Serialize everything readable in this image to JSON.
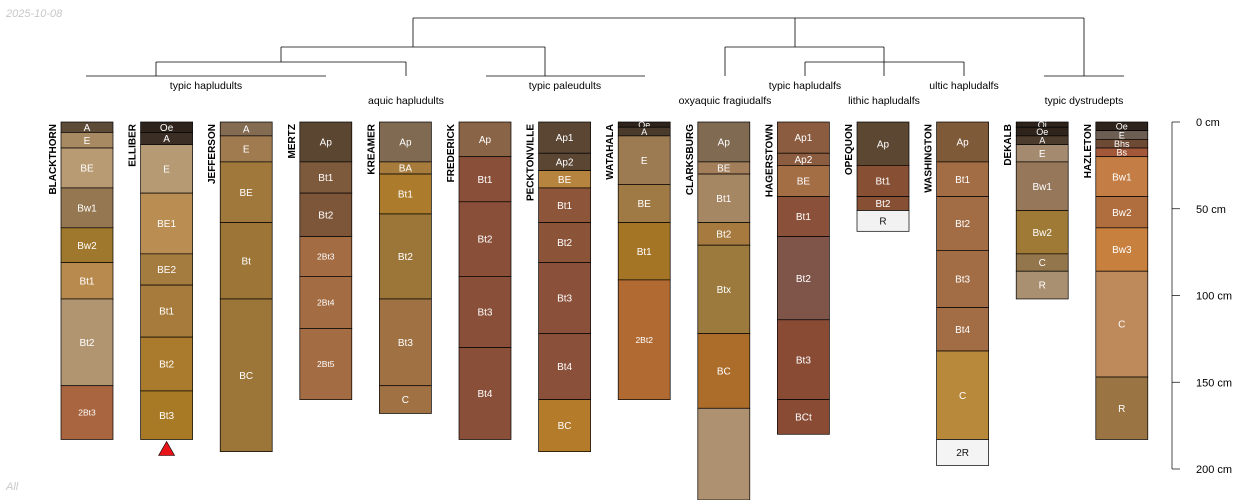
{
  "date": "2025-10-08",
  "subset": "All",
  "depth_axis": {
    "unit": "cm",
    "ticks": [
      {
        "value": 0,
        "label": "0 cm"
      },
      {
        "value": 50,
        "label": "50 cm"
      },
      {
        "value": 100,
        "label": "100 cm"
      },
      {
        "value": 150,
        "label": "150 cm"
      },
      {
        "value": 200,
        "label": "200 cm"
      }
    ]
  },
  "taxa": [
    "typic hapludults",
    "aquic hapludults",
    "typic paleudults",
    "oxyaquic fragiudalfs",
    "typic hapludalfs",
    "lithic hapludalfs",
    "ultic hapludalfs",
    "typic dystrudepts"
  ],
  "profiles": [
    {
      "name": "BLACKTHORN",
      "horizons": [
        {
          "name": "A",
          "top": 0,
          "bottom": 6,
          "color": "#5e4b37"
        },
        {
          "name": "E",
          "top": 6,
          "bottom": 15,
          "color": "#a88a62"
        },
        {
          "name": "BE",
          "top": 15,
          "bottom": 38,
          "color": "#b89b72"
        },
        {
          "name": "Bw1",
          "top": 38,
          "bottom": 61,
          "color": "#957752"
        },
        {
          "name": "Bw2",
          "top": 61,
          "bottom": 81,
          "color": "#a0782d"
        },
        {
          "name": "Bt1",
          "top": 81,
          "bottom": 102,
          "color": "#b98a4e"
        },
        {
          "name": "Bt2",
          "top": 102,
          "bottom": 152,
          "color": "#b09570"
        },
        {
          "name": "2Bt3",
          "top": 152,
          "bottom": 183,
          "color": "#a8653f"
        }
      ]
    },
    {
      "name": "ELLIBER",
      "marker": "red-triangle",
      "horizons": [
        {
          "name": "Oe",
          "top": 0,
          "bottom": 6,
          "color": "#2e241b"
        },
        {
          "name": "A",
          "top": 6,
          "bottom": 13,
          "color": "#3b2f25"
        },
        {
          "name": "E",
          "top": 13,
          "bottom": 41,
          "color": "#b69a74"
        },
        {
          "name": "BE1",
          "top": 41,
          "bottom": 76,
          "color": "#ba8d53"
        },
        {
          "name": "BE2",
          "top": 76,
          "bottom": 94,
          "color": "#a57c3f"
        },
        {
          "name": "Bt1",
          "top": 94,
          "bottom": 124,
          "color": "#a77b3b"
        },
        {
          "name": "Bt2",
          "top": 124,
          "bottom": 155,
          "color": "#aa7b2d"
        },
        {
          "name": "Bt3",
          "top": 155,
          "bottom": 183,
          "color": "#a87a26"
        }
      ]
    },
    {
      "name": "JEFFERSON",
      "horizons": [
        {
          "name": "A",
          "top": 0,
          "bottom": 8,
          "color": "#846c53"
        },
        {
          "name": "E",
          "top": 8,
          "bottom": 23,
          "color": "#a07b50"
        },
        {
          "name": "BE",
          "top": 23,
          "bottom": 58,
          "color": "#a0783c"
        },
        {
          "name": "Bt",
          "top": 58,
          "bottom": 102,
          "color": "#9c7537"
        },
        {
          "name": "BC",
          "top": 102,
          "bottom": 190,
          "color": "#9c7538"
        }
      ]
    },
    {
      "name": "MERTZ",
      "horizons": [
        {
          "name": "Ap",
          "top": 0,
          "bottom": 23,
          "color": "#5b4631"
        },
        {
          "name": "Bt1",
          "top": 23,
          "bottom": 41,
          "color": "#7e5a3c"
        },
        {
          "name": "Bt2",
          "top": 41,
          "bottom": 66,
          "color": "#7d5538"
        },
        {
          "name": "2Bt3",
          "top": 66,
          "bottom": 89,
          "color": "#a36c43"
        },
        {
          "name": "2Bt4",
          "top": 89,
          "bottom": 119,
          "color": "#a36c43"
        },
        {
          "name": "2Bt5",
          "top": 119,
          "bottom": 160,
          "color": "#a36c43"
        }
      ]
    },
    {
      "name": "KREAMER",
      "horizons": [
        {
          "name": "Ap",
          "top": 0,
          "bottom": 23,
          "color": "#806a52"
        },
        {
          "name": "BA",
          "top": 23,
          "bottom": 30,
          "color": "#a77b3c"
        },
        {
          "name": "Bt1",
          "top": 30,
          "bottom": 53,
          "color": "#ac7c2c"
        },
        {
          "name": "Bt2",
          "top": 53,
          "bottom": 102,
          "color": "#9c7538"
        },
        {
          "name": "Bt3",
          "top": 102,
          "bottom": 152,
          "color": "#9f7143"
        },
        {
          "name": "C",
          "top": 152,
          "bottom": 168,
          "color": "#9f7143"
        }
      ]
    },
    {
      "name": "FREDERICK",
      "horizons": [
        {
          "name": "Ap",
          "top": 0,
          "bottom": 20,
          "color": "#8a6446"
        },
        {
          "name": "Bt1",
          "top": 20,
          "bottom": 46,
          "color": "#8a4f39"
        },
        {
          "name": "Bt2",
          "top": 46,
          "bottom": 89,
          "color": "#8a4f39"
        },
        {
          "name": "Bt3",
          "top": 89,
          "bottom": 130,
          "color": "#8a4f39"
        },
        {
          "name": "Bt4",
          "top": 130,
          "bottom": 183,
          "color": "#8a4f39"
        }
      ]
    },
    {
      "name": "PECKTONVILLE",
      "horizons": [
        {
          "name": "Ap1",
          "top": 0,
          "bottom": 18,
          "color": "#5a4633"
        },
        {
          "name": "Ap2",
          "top": 18,
          "bottom": 28,
          "color": "#5a4633"
        },
        {
          "name": "BE",
          "top": 28,
          "bottom": 38,
          "color": "#b6843e"
        },
        {
          "name": "Bt1",
          "top": 38,
          "bottom": 58,
          "color": "#8d5539"
        },
        {
          "name": "Bt2",
          "top": 58,
          "bottom": 81,
          "color": "#8b5439"
        },
        {
          "name": "Bt3",
          "top": 81,
          "bottom": 122,
          "color": "#8b5039"
        },
        {
          "name": "Bt4",
          "top": 122,
          "bottom": 160,
          "color": "#8b5039"
        },
        {
          "name": "BC",
          "top": 160,
          "bottom": 190,
          "color": "#b47c2a"
        }
      ]
    },
    {
      "name": "WATAHALA",
      "horizons": [
        {
          "name": "Oe",
          "top": 0,
          "bottom": 3,
          "color": "#2e241b"
        },
        {
          "name": "A",
          "top": 3,
          "bottom": 8,
          "color": "#4a3a2b"
        },
        {
          "name": "E",
          "top": 8,
          "bottom": 36,
          "color": "#9c7a52"
        },
        {
          "name": "BE",
          "top": 36,
          "bottom": 58,
          "color": "#a07a45"
        },
        {
          "name": "Bt1",
          "top": 58,
          "bottom": 91,
          "color": "#a57526"
        },
        {
          "name": "2Bt2",
          "top": 91,
          "bottom": 160,
          "color": "#b06a32"
        }
      ]
    },
    {
      "name": "CLARKSBURG",
      "horizons": [
        {
          "name": "Ap",
          "top": 0,
          "bottom": 23,
          "color": "#806a52"
        },
        {
          "name": "BE",
          "top": 23,
          "bottom": 30,
          "color": "#a27e5a"
        },
        {
          "name": "Bt1",
          "top": 30,
          "bottom": 58,
          "color": "#a68763"
        },
        {
          "name": "Bt2",
          "top": 58,
          "bottom": 71,
          "color": "#a77a3f"
        },
        {
          "name": "Btx",
          "top": 71,
          "bottom": 122,
          "color": "#9c7a3d"
        },
        {
          "name": "BC",
          "top": 122,
          "bottom": 165,
          "color": "#ad6d2a"
        },
        {
          "name": "",
          "top": 165,
          "bottom": 220,
          "color": "#ae9170"
        }
      ]
    },
    {
      "name": "HAGERSTOWN",
      "horizons": [
        {
          "name": "Ap1",
          "top": 0,
          "bottom": 18,
          "color": "#8b5c3f"
        },
        {
          "name": "Ap2",
          "top": 18,
          "bottom": 25,
          "color": "#8b5c3f"
        },
        {
          "name": "BE",
          "top": 25,
          "bottom": 43,
          "color": "#a46e45"
        },
        {
          "name": "Bt1",
          "top": 43,
          "bottom": 66,
          "color": "#8b5039"
        },
        {
          "name": "Bt2",
          "top": 66,
          "bottom": 114,
          "color": "#805549"
        },
        {
          "name": "Bt3",
          "top": 114,
          "bottom": 160,
          "color": "#8a4b35"
        },
        {
          "name": "BCt",
          "top": 160,
          "bottom": 180,
          "color": "#8a4b35"
        }
      ]
    },
    {
      "name": "OPEQUON",
      "horizons": [
        {
          "name": "Ap",
          "top": 0,
          "bottom": 25,
          "color": "#5c4733"
        },
        {
          "name": "Bt1",
          "top": 25,
          "bottom": 43,
          "color": "#874f34"
        },
        {
          "name": "Bt2",
          "top": 43,
          "bottom": 51,
          "color": "#874f34"
        },
        {
          "name": "R",
          "top": 51,
          "bottom": 63,
          "color": "#f2f2f2"
        }
      ]
    },
    {
      "name": "WASHINGTON",
      "horizons": [
        {
          "name": "Ap",
          "top": 0,
          "bottom": 23,
          "color": "#7e5a38"
        },
        {
          "name": "Bt1",
          "top": 23,
          "bottom": 43,
          "color": "#a26d45"
        },
        {
          "name": "Bt2",
          "top": 43,
          "bottom": 74,
          "color": "#a26d45"
        },
        {
          "name": "Bt3",
          "top": 74,
          "bottom": 107,
          "color": "#a26d45"
        },
        {
          "name": "Bt4",
          "top": 107,
          "bottom": 132,
          "color": "#a26d45"
        },
        {
          "name": "C",
          "top": 132,
          "bottom": 183,
          "color": "#b8893a"
        },
        {
          "name": "2R",
          "top": 183,
          "bottom": 198,
          "color": "#f4f4f4"
        }
      ]
    },
    {
      "name": "DEKALB",
      "horizons": [
        {
          "name": "Oi",
          "top": 0,
          "bottom": 3,
          "color": "#2e241b"
        },
        {
          "name": "Oe",
          "top": 3,
          "bottom": 8,
          "color": "#2e241b"
        },
        {
          "name": "A",
          "top": 8,
          "bottom": 13,
          "color": "#4c3c2e"
        },
        {
          "name": "E",
          "top": 13,
          "bottom": 23,
          "color": "#a48a6e"
        },
        {
          "name": "Bw1",
          "top": 23,
          "bottom": 51,
          "color": "#97775a"
        },
        {
          "name": "Bw2",
          "top": 51,
          "bottom": 76,
          "color": "#9f7a36"
        },
        {
          "name": "C",
          "top": 76,
          "bottom": 86,
          "color": "#94764c"
        },
        {
          "name": "R",
          "top": 86,
          "bottom": 102,
          "color": "#a89070"
        }
      ]
    },
    {
      "name": "HAZLETON",
      "horizons": [
        {
          "name": "Oe",
          "top": 0,
          "bottom": 5,
          "color": "#2e241b"
        },
        {
          "name": "E",
          "top": 5,
          "bottom": 10,
          "color": "#6c5e52"
        },
        {
          "name": "Bhs",
          "top": 10,
          "bottom": 15,
          "color": "#6e4a35"
        },
        {
          "name": "Bs",
          "top": 15,
          "bottom": 20,
          "color": "#a4583a"
        },
        {
          "name": "Bw1",
          "top": 20,
          "bottom": 43,
          "color": "#c47e45"
        },
        {
          "name": "Bw2",
          "top": 43,
          "bottom": 61,
          "color": "#b06e3e"
        },
        {
          "name": "Bw3",
          "top": 61,
          "bottom": 86,
          "color": "#c8803e"
        },
        {
          "name": "C",
          "top": 86,
          "bottom": 147,
          "color": "#be8a5c"
        },
        {
          "name": "R",
          "top": 147,
          "bottom": 183,
          "color": "#9a7442"
        }
      ]
    }
  ]
}
